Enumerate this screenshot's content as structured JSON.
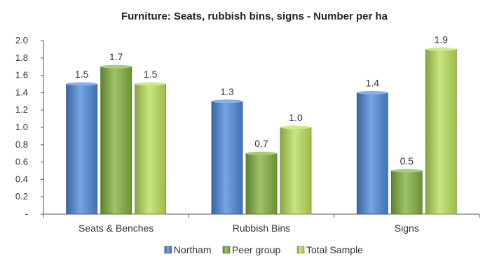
{
  "chart_data": {
    "type": "bar",
    "title": "Furniture: Seats, rubbish bins, signs - Number per ha",
    "xlabel": "",
    "ylabel": "",
    "categories": [
      "Seats & Benches",
      "Rubbish Bins",
      "Signs"
    ],
    "series": [
      {
        "name": "Northam",
        "values": [
          1.5,
          1.3,
          1.4
        ],
        "color": "#4a86d8"
      },
      {
        "name": "Peer group",
        "values": [
          1.7,
          0.7,
          0.5
        ],
        "color": "#7fae3a"
      },
      {
        "name": "Total Sample",
        "values": [
          1.5,
          1.0,
          1.9
        ],
        "color": "#b7dc58"
      }
    ],
    "ylim": [
      0,
      2.0
    ],
    "yticks": [
      "-",
      "0.2",
      "0.4",
      "0.6",
      "0.8",
      "1.0",
      "1.2",
      "1.4",
      "1.6",
      "1.8",
      "2.0"
    ],
    "grid": false,
    "legend_position": "bottom"
  }
}
